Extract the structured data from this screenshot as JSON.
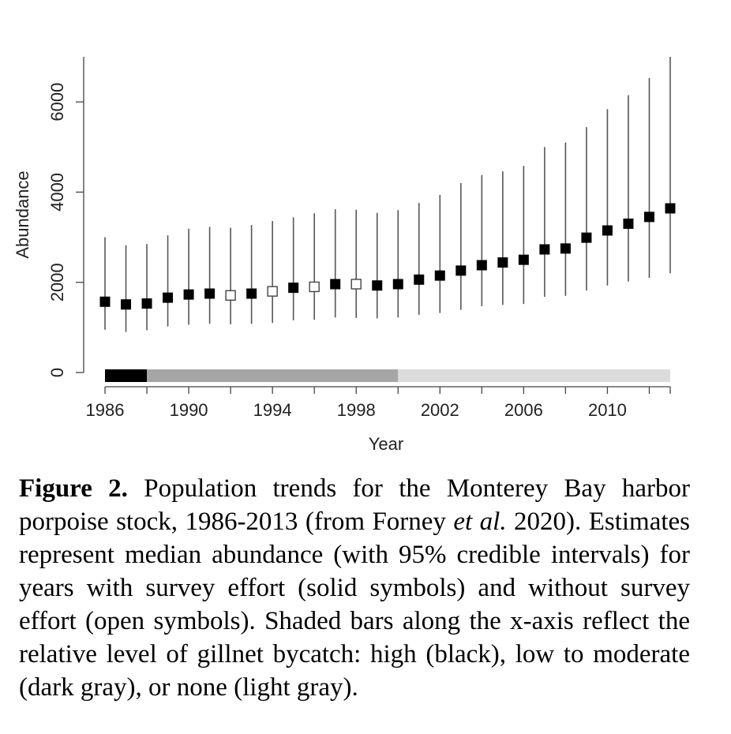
{
  "chart_data": {
    "type": "scatter",
    "title": "",
    "xlabel": "Year",
    "ylabel": "Abundance",
    "xlim": [
      1986,
      2013
    ],
    "ylim": [
      0,
      7000
    ],
    "x_ticks": [
      1986,
      1988,
      1990,
      1992,
      1994,
      1996,
      1998,
      2000,
      2002,
      2004,
      2006,
      2008,
      2010,
      2012,
      2013
    ],
    "x_tick_labels": [
      "1986",
      "1990",
      "1994",
      "1998",
      "2002",
      "2006",
      "2010"
    ],
    "x_tick_label_values": [
      1986,
      1990,
      1994,
      1998,
      2002,
      2006,
      2010
    ],
    "y_ticks": [
      0,
      2000,
      4000,
      6000
    ],
    "y_tick_labels": [
      "0",
      "2000",
      "4000",
      "6000"
    ],
    "grid": false,
    "series": [
      {
        "x": [
          1986,
          1987,
          1988,
          1989,
          1990,
          1991,
          1992,
          1993,
          1994,
          1995,
          1996,
          1997,
          1998,
          1999,
          2000,
          2001,
          2002,
          2003,
          2004,
          2005,
          2006,
          2007,
          2008,
          2009,
          2010,
          2011,
          2012,
          2013
        ],
        "median": [
          1570,
          1510,
          1530,
          1660,
          1730,
          1750,
          1710,
          1750,
          1800,
          1880,
          1900,
          1960,
          1960,
          1930,
          1960,
          2060,
          2150,
          2260,
          2380,
          2440,
          2500,
          2730,
          2750,
          2990,
          3150,
          3300,
          3450,
          3640
        ],
        "lower": [
          950,
          900,
          940,
          1020,
          1060,
          1080,
          1070,
          1080,
          1100,
          1160,
          1170,
          1220,
          1210,
          1200,
          1220,
          1280,
          1320,
          1390,
          1470,
          1500,
          1520,
          1680,
          1700,
          1820,
          1930,
          2020,
          2100,
          2200
        ],
        "upper": [
          3000,
          2820,
          2850,
          3040,
          3190,
          3230,
          3210,
          3270,
          3360,
          3440,
          3530,
          3620,
          3610,
          3540,
          3600,
          3760,
          3940,
          4200,
          4380,
          4460,
          4580,
          5000,
          5100,
          5440,
          5840,
          6150,
          6530,
          7000
        ],
        "survey_effort": [
          true,
          true,
          true,
          true,
          true,
          true,
          false,
          true,
          false,
          true,
          false,
          true,
          false,
          true,
          true,
          true,
          true,
          true,
          true,
          true,
          true,
          true,
          true,
          true,
          true,
          true,
          true,
          true
        ]
      }
    ],
    "bycatch_bars": [
      {
        "level": "high",
        "start": 1986,
        "end": 1988,
        "color": "#000000"
      },
      {
        "level": "low to moderate",
        "start": 1988,
        "end": 2000,
        "color": "#a6a6a6"
      },
      {
        "level": "none",
        "start": 2000,
        "end": 2013,
        "color": "#dcdcdc"
      }
    ]
  },
  "caption": {
    "label": "Figure 2.",
    "text": " Population trends for the Monterey Bay harbor porpoise stock, 1986-2013 (from Forney ",
    "italic": "et al.",
    "text2": " 2020). Estimates represent median abundance (with 95% credible intervals) for years with survey effort (solid symbols) and without survey effort (open symbols). Shaded bars along the x-axis reflect the relative level of gillnet bycatch: high (black), low to moderate (dark gray), or none (light gray)."
  }
}
